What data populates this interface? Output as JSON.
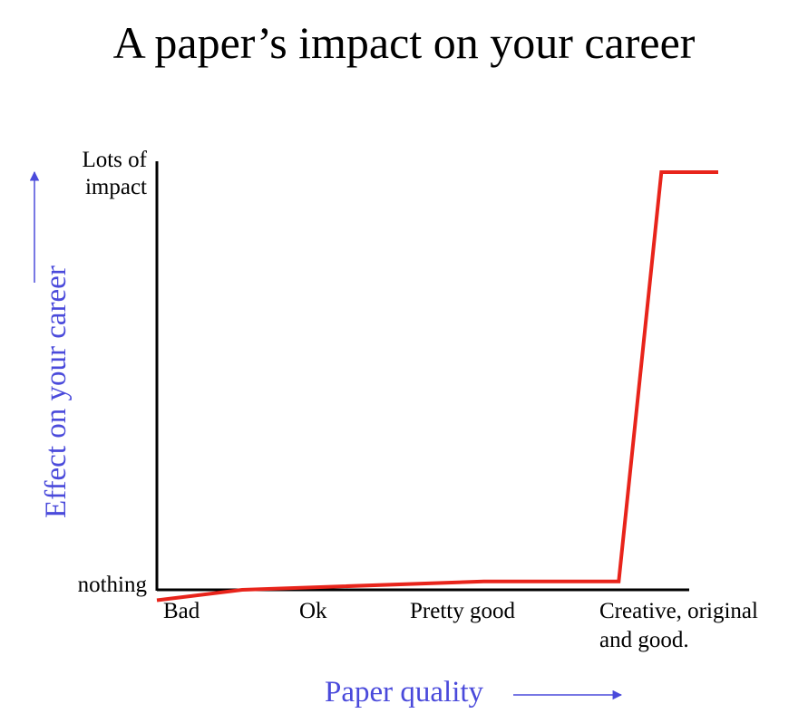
{
  "title": "A paper’s impact on your career",
  "colors": {
    "line": "#e8241b",
    "axis_title": "#4a4adb",
    "axis": "#000000"
  },
  "chart_data": {
    "type": "line",
    "title": "A paper’s impact on your career",
    "xlabel": "Paper quality",
    "ylabel": "Effect on your career",
    "x_ticks": [
      "Bad",
      "Ok",
      "Pretty good",
      "Creative, original and good."
    ],
    "x_tick_lines": [
      [
        "Bad"
      ],
      [
        "Ok"
      ],
      [
        "Pretty good"
      ],
      [
        "Creative, original",
        "and good."
      ]
    ],
    "y_ticks": [
      "nothing",
      "Lots of impact"
    ],
    "y_tick_lines": [
      [
        "nothing"
      ],
      [
        "Lots of",
        "impact"
      ]
    ],
    "xlim": [
      0,
      3.95
    ],
    "ylim": [
      0,
      1
    ],
    "grid": false,
    "series": [
      {
        "x": [
          0,
          0.6,
          2.3,
          3.25,
          3.55,
          3.95
        ],
        "y": [
          -0.025,
          0.0,
          0.02,
          0.02,
          1.0,
          1.0
        ]
      }
    ]
  }
}
